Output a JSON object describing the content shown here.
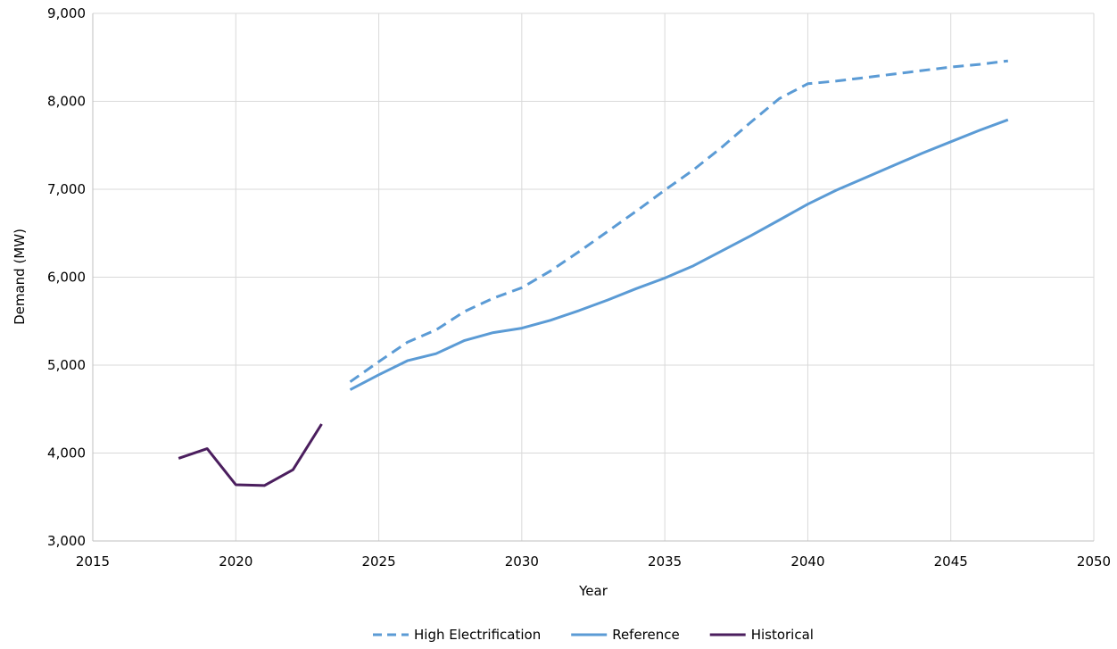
{
  "chart_data": {
    "type": "line",
    "title": "",
    "xlabel": "Year",
    "ylabel": "Demand (MW)",
    "xlim": [
      2015,
      2050
    ],
    "ylim": [
      3000,
      9000
    ],
    "x_ticks": [
      {
        "value": 2015,
        "label": "2015"
      },
      {
        "value": 2020,
        "label": "2020"
      },
      {
        "value": 2025,
        "label": "2025"
      },
      {
        "value": 2030,
        "label": "2030"
      },
      {
        "value": 2035,
        "label": "2035"
      },
      {
        "value": 2040,
        "label": "2040"
      },
      {
        "value": 2045,
        "label": "2045"
      },
      {
        "value": 2050,
        "label": "2050"
      }
    ],
    "y_ticks": [
      {
        "value": 3000,
        "label": "3,000"
      },
      {
        "value": 4000,
        "label": "4,000"
      },
      {
        "value": 5000,
        "label": "5,000"
      },
      {
        "value": 6000,
        "label": "6,000"
      },
      {
        "value": 7000,
        "label": "7,000"
      },
      {
        "value": 8000,
        "label": "8,000"
      },
      {
        "value": 9000,
        "label": "9,000"
      }
    ],
    "grid": true,
    "legend_position": "bottom",
    "series": [
      {
        "name": "High Electrification",
        "color": "#5B9BD5",
        "dashed": true,
        "x": [
          2024,
          2025,
          2026,
          2027,
          2028,
          2029,
          2030,
          2031,
          2032,
          2033,
          2034,
          2035,
          2036,
          2037,
          2038,
          2039,
          2040,
          2041,
          2042,
          2043,
          2044,
          2045,
          2046,
          2047
        ],
        "y": [
          4810,
          5040,
          5260,
          5400,
          5610,
          5760,
          5880,
          6070,
          6290,
          6520,
          6750,
          6990,
          7220,
          7480,
          7760,
          8030,
          8200,
          8230,
          8270,
          8310,
          8350,
          8390,
          8420,
          8460
        ]
      },
      {
        "name": "Reference",
        "color": "#5B9BD5",
        "dashed": false,
        "x": [
          2024,
          2025,
          2026,
          2027,
          2028,
          2029,
          2030,
          2031,
          2032,
          2033,
          2034,
          2035,
          2036,
          2037,
          2038,
          2039,
          2040,
          2041,
          2042,
          2043,
          2044,
          2045,
          2046,
          2047
        ],
        "y": [
          4720,
          4890,
          5050,
          5130,
          5280,
          5370,
          5420,
          5510,
          5620,
          5740,
          5870,
          5990,
          6130,
          6300,
          6470,
          6650,
          6830,
          6990,
          7130,
          7270,
          7410,
          7540,
          7670,
          7790
        ]
      },
      {
        "name": "Historical",
        "color": "#4B1E5E",
        "dashed": false,
        "x": [
          2018,
          2019,
          2020,
          2021,
          2022,
          2023
        ],
        "y": [
          3940,
          4050,
          3640,
          3630,
          3810,
          4330
        ]
      }
    ]
  }
}
